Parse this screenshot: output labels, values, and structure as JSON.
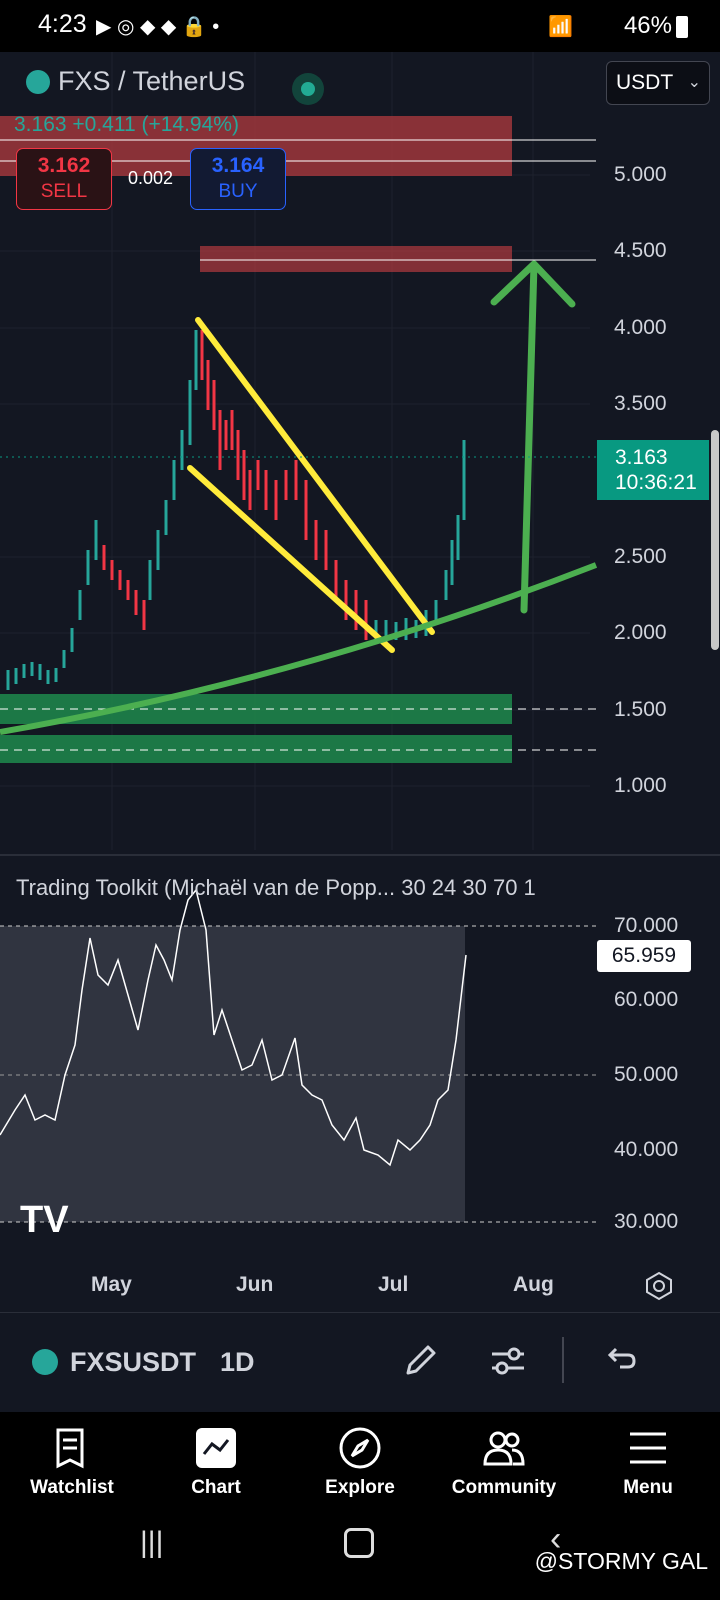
{
  "status_bar": {
    "time": "4:23",
    "battery": "46%"
  },
  "header": {
    "symbol_title": "FXS / TetherUS",
    "currency_select": "USDT",
    "price_change": "3.163  +0.411 (+14.94%)",
    "sell": {
      "price": "3.162",
      "label": "SELL"
    },
    "buy": {
      "price": "3.164",
      "label": "BUY"
    },
    "spread": "0.002"
  },
  "price_axis": [
    "5.000",
    "4.500",
    "4.000",
    "3.500",
    "2.500",
    "2.000",
    "1.500",
    "1.000"
  ],
  "last_price": {
    "price": "3.163",
    "countdown": "10:36:21"
  },
  "indicator": {
    "title": "Trading Toolkit (Michaël van de Popp... 30 24 30 70 1",
    "axis": [
      "70.000",
      "60.000",
      "50.000",
      "40.000",
      "30.000"
    ],
    "value": "65.959"
  },
  "time_axis": [
    "May",
    "Jun",
    "Jul",
    "Aug"
  ],
  "toolbar": {
    "symbol": "FXSUSDT",
    "interval": "1D"
  },
  "bottom_nav": [
    "Watchlist",
    "Chart",
    "Explore",
    "Community",
    "Menu"
  ],
  "watermark": "@STORMY GAL",
  "colors": {
    "bg": "#131722",
    "up": "#26a69a",
    "down": "#f23645",
    "trend_green": "#4caf50",
    "wedge_yellow": "#ffeb3b"
  }
}
